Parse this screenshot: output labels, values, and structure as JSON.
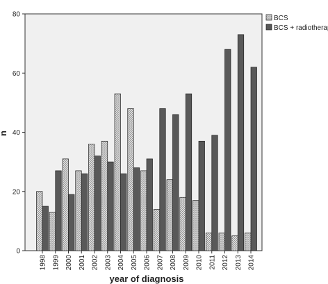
{
  "chart_data": {
    "type": "bar",
    "title": "",
    "xlabel": "year of diagnosis",
    "ylabel": "n",
    "ylim": [
      0,
      80
    ],
    "yticks": [
      0,
      20,
      40,
      60,
      80
    ],
    "grid": false,
    "legend_position": "top-right",
    "categories": [
      "1998",
      "1999",
      "2000",
      "2001",
      "2002",
      "2003",
      "2004",
      "2005",
      "2006",
      "2007",
      "2008",
      "2009",
      "2010",
      "2011",
      "2012",
      "2013",
      "2014"
    ],
    "series": [
      {
        "name": "BCS",
        "color": "#dcdcdc",
        "pattern": "cross-hatch",
        "values": [
          20,
          13,
          31,
          27,
          36,
          37,
          53,
          48,
          27,
          14,
          24,
          18,
          17,
          6,
          6,
          5,
          6
        ]
      },
      {
        "name": "BCS + radiotherapy",
        "color": "#595959",
        "pattern": "solid",
        "values": [
          15,
          27,
          19,
          26,
          32,
          30,
          26,
          28,
          31,
          48,
          46,
          53,
          37,
          39,
          68,
          73,
          62
        ]
      }
    ]
  },
  "colors": {
    "plot_background": "#f0f0f0",
    "axis": "#333333",
    "bar_outline": "#222222"
  }
}
